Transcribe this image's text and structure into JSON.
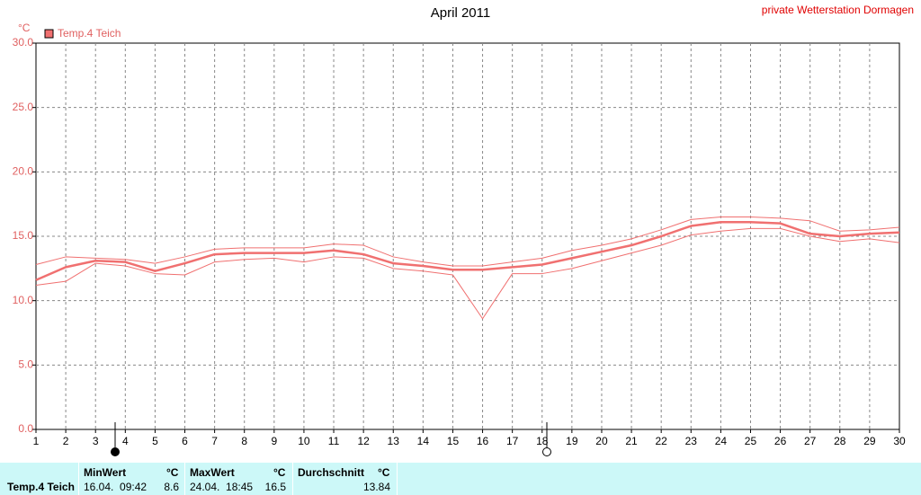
{
  "chart_data": {
    "type": "line",
    "title": "April 2011",
    "station": "private Wetterstation Dormagen",
    "y_unit": "°C",
    "x": [
      1,
      2,
      3,
      4,
      5,
      6,
      7,
      8,
      9,
      10,
      11,
      12,
      13,
      14,
      15,
      16,
      17,
      18,
      19,
      20,
      21,
      22,
      23,
      24,
      25,
      26,
      27,
      28,
      29,
      30
    ],
    "xlim": [
      1,
      30
    ],
    "xticks": [
      1,
      2,
      3,
      4,
      5,
      6,
      7,
      8,
      9,
      10,
      11,
      12,
      13,
      14,
      15,
      16,
      17,
      18,
      19,
      20,
      21,
      22,
      23,
      24,
      25,
      26,
      27,
      28,
      29,
      30
    ],
    "ylim": [
      0,
      30
    ],
    "yticks": [
      {
        "value": 0,
        "label": "0.0"
      },
      {
        "value": 5,
        "label": "5.0"
      },
      {
        "value": 10,
        "label": "10.0"
      },
      {
        "value": 15,
        "label": "15.0"
      },
      {
        "value": 20,
        "label": "20.0"
      },
      {
        "value": 25,
        "label": "25.0"
      },
      {
        "value": 30,
        "label": "30.0"
      }
    ],
    "grid": true,
    "series": [
      {
        "name": "Temp.4 Teich",
        "color": "#f07070",
        "width": 2.5,
        "values": [
          11.6,
          12.6,
          13.1,
          13.0,
          12.3,
          12.9,
          13.6,
          13.7,
          13.7,
          13.7,
          13.9,
          13.6,
          12.9,
          12.7,
          12.4,
          12.4,
          12.6,
          12.8,
          13.3,
          13.8,
          14.3,
          15.0,
          15.8,
          16.1,
          16.1,
          16.0,
          15.2,
          15.0,
          15.2,
          15.3
        ]
      },
      {
        "color": "#f07070",
        "width": 1,
        "values": [
          12.8,
          13.4,
          13.3,
          13.2,
          12.9,
          13.4,
          14.0,
          14.1,
          14.1,
          14.1,
          14.4,
          14.3,
          13.4,
          13.0,
          12.7,
          12.7,
          13.0,
          13.3,
          13.9,
          14.3,
          14.8,
          15.5,
          16.3,
          16.5,
          16.5,
          16.4,
          16.2,
          15.4,
          15.5,
          15.7
        ]
      },
      {
        "color": "#f07070",
        "width": 1,
        "values": [
          11.2,
          11.5,
          12.9,
          12.7,
          12.1,
          12.0,
          13.0,
          13.2,
          13.3,
          13.0,
          13.4,
          13.3,
          12.5,
          12.3,
          12.0,
          8.6,
          12.1,
          12.1,
          12.5,
          13.1,
          13.7,
          14.3,
          15.1,
          15.4,
          15.6,
          15.6,
          15.0,
          14.6,
          14.8,
          14.5
        ]
      }
    ]
  },
  "stats": {
    "sensor": "Temp.4 Teich",
    "min": {
      "label": "MinWert",
      "unit": "°C",
      "time": "16.04.  09:42",
      "value": "8.6"
    },
    "max": {
      "label": "MaxWert",
      "unit": "°C",
      "time": "24.04.  18:45",
      "value": "16.5"
    },
    "avg": {
      "label": "Durchschnitt",
      "unit": "°C",
      "value": "13.84"
    }
  }
}
